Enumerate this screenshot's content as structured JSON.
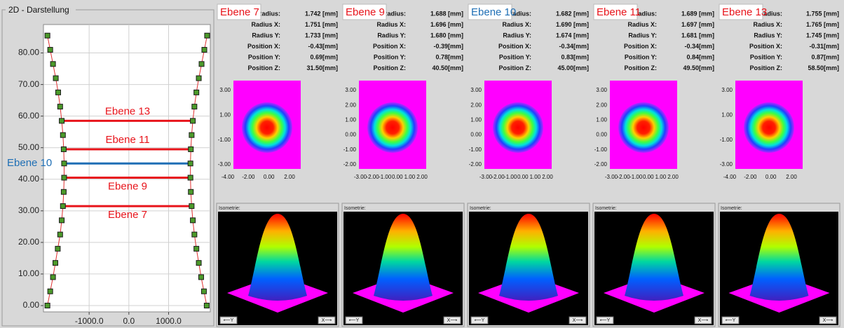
{
  "left_panel": {
    "title": "2D - Darstellung",
    "plot": {
      "xlim": [
        -2150,
        2050
      ],
      "ylim": [
        -2,
        89
      ],
      "xticks": [
        {
          "value": -1000,
          "label": "-1000.0"
        },
        {
          "value": 0,
          "label": "0.0"
        },
        {
          "value": 1000,
          "label": "1000.0"
        }
      ],
      "yticks": [
        {
          "value": 0,
          "label": "0.00"
        },
        {
          "value": 10,
          "label": "10.00"
        },
        {
          "value": 20,
          "label": "20.00"
        },
        {
          "value": 30,
          "label": "30.00"
        },
        {
          "value": 40,
          "label": "40.00"
        },
        {
          "value": 50,
          "label": "50.00"
        },
        {
          "value": 60,
          "label": "60.00"
        },
        {
          "value": 70,
          "label": "70.00"
        },
        {
          "value": 80,
          "label": "80.00"
        }
      ],
      "z": [
        0,
        4.5,
        9,
        13.5,
        18,
        22.5,
        27,
        31.5,
        36,
        40.5,
        45,
        49.5,
        54,
        58.5,
        63,
        67.5,
        72,
        76.5,
        81,
        85.5
      ],
      "left_x": [
        -2050,
        -1980,
        -1910,
        -1850,
        -1790,
        -1730,
        -1690,
        -1660,
        -1640,
        -1630,
        -1630,
        -1640,
        -1660,
        -1690,
        -1730,
        -1780,
        -1840,
        -1910,
        -1980,
        -2050
      ],
      "right_x": [
        1960,
        1890,
        1820,
        1760,
        1700,
        1650,
        1610,
        1580,
        1560,
        1550,
        1550,
        1560,
        1580,
        1610,
        1650,
        1700,
        1760,
        1830,
        1900,
        1970
      ],
      "levels": [
        {
          "name": "Ebene 7",
          "z": 31.5,
          "color": "#e8141b"
        },
        {
          "name": "Ebene 9",
          "z": 40.5,
          "color": "#e8141b"
        },
        {
          "name": "Ebene 10",
          "z": 45,
          "color": "#1f6fb5"
        },
        {
          "name": "Ebene 11",
          "z": 49.5,
          "color": "#e8141b"
        },
        {
          "name": "Ebene 13",
          "z": 58.5,
          "color": "#e8141b"
        }
      ]
    }
  },
  "panels": [
    {
      "label": "Ebene 7",
      "label_color": "#e8141b",
      "stats": [
        [
          "Radius:",
          "1.742 [mm]"
        ],
        [
          "Radius X:",
          "1.751 [mm]"
        ],
        [
          "Radius Y:",
          "1.733 [mm]"
        ],
        [
          "Position X:",
          "-0.43[mm]"
        ],
        [
          "Position Y:",
          "0.69[mm]"
        ],
        [
          "Position Z:",
          "31.50[mm]"
        ]
      ],
      "heatmap": {
        "yticks": [
          "3.00",
          "1.00",
          "-1.00",
          "-3.00"
        ],
        "xticks": [
          "-4.00",
          "-2.00",
          "0.00",
          "2.00"
        ]
      },
      "isometry": {
        "title": "Isometrie:",
        "buttons": [
          "⟵Y",
          "X⟶"
        ]
      }
    },
    {
      "label": "Ebene 9",
      "label_color": "#e8141b",
      "stats": [
        [
          "Radius:",
          "1.688 [mm]"
        ],
        [
          "Radius X:",
          "1.696 [mm]"
        ],
        [
          "Radius Y:",
          "1.680 [mm]"
        ],
        [
          "Position X:",
          "-0.39[mm]"
        ],
        [
          "Position Y:",
          "0.78[mm]"
        ],
        [
          "Position Z:",
          "40.50[mm]"
        ]
      ],
      "heatmap": {
        "yticks": [
          "3.00",
          "2.00",
          "1.00",
          "0.00",
          "-1.00",
          "-2.00"
        ],
        "xticks": [
          "-3.00",
          "-2.00",
          "-1.00",
          "0.00",
          "1.00",
          "2.00"
        ]
      },
      "isometry": {
        "title": "Isometrie:",
        "buttons": [
          "⟵Y",
          "X⟶"
        ]
      }
    },
    {
      "label": "Ebene 10",
      "label_color": "#1f6fb5",
      "stats": [
        [
          "Radius:",
          "1.682 [mm]"
        ],
        [
          "Radius X:",
          "1.690 [mm]"
        ],
        [
          "Radius Y:",
          "1.674 [mm]"
        ],
        [
          "Position X:",
          "-0.34[mm]"
        ],
        [
          "Position Y:",
          "0.83[mm]"
        ],
        [
          "Position Z:",
          "45.00[mm]"
        ]
      ],
      "heatmap": {
        "yticks": [
          "3.00",
          "2.00",
          "1.00",
          "0.00",
          "-1.00",
          "-2.00"
        ],
        "xticks": [
          "-3.00",
          "-2.00",
          "-1.00",
          "0.00",
          "1.00",
          "2.00"
        ]
      },
      "isometry": {
        "title": "Isometrie:",
        "buttons": [
          "⟵Y",
          "X⟶"
        ]
      }
    },
    {
      "label": "Ebene 11",
      "label_color": "#e8141b",
      "stats": [
        [
          "Radius:",
          "1.689 [mm]"
        ],
        [
          "Radius X:",
          "1.697 [mm]"
        ],
        [
          "Radius Y:",
          "1.681 [mm]"
        ],
        [
          "Position X:",
          "-0.34[mm]"
        ],
        [
          "Position Y:",
          "0.84[mm]"
        ],
        [
          "Position Z:",
          "49.50[mm]"
        ]
      ],
      "heatmap": {
        "yticks": [
          "3.00",
          "2.00",
          "1.00",
          "0.00",
          "-1.00",
          "-2.00"
        ],
        "xticks": [
          "-3.00",
          "-2.00",
          "-1.00",
          "0.00",
          "1.00",
          "2.00"
        ]
      },
      "isometry": {
        "title": "Isometrie:",
        "buttons": [
          "⟵Y",
          "X⟶"
        ]
      }
    },
    {
      "label": "Ebene 13",
      "label_color": "#e8141b",
      "stats": [
        [
          "Radius:",
          "1.755 [mm]"
        ],
        [
          "Radius X:",
          "1.765 [mm]"
        ],
        [
          "Radius Y:",
          "1.745 [mm]"
        ],
        [
          "Position X:",
          "-0.31[mm]"
        ],
        [
          "Position Y:",
          "0.87[mm]"
        ],
        [
          "Position Z:",
          "58.50[mm]"
        ]
      ],
      "heatmap": {
        "yticks": [
          "3.00",
          "1.00",
          "-1.00",
          "-3.00"
        ],
        "xticks": [
          "-4.00",
          "-2.00",
          "0.00",
          "2.00"
        ]
      },
      "isometry": {
        "title": "Isometrie:",
        "buttons": [
          "⟵Y",
          "X⟶"
        ]
      }
    }
  ]
}
